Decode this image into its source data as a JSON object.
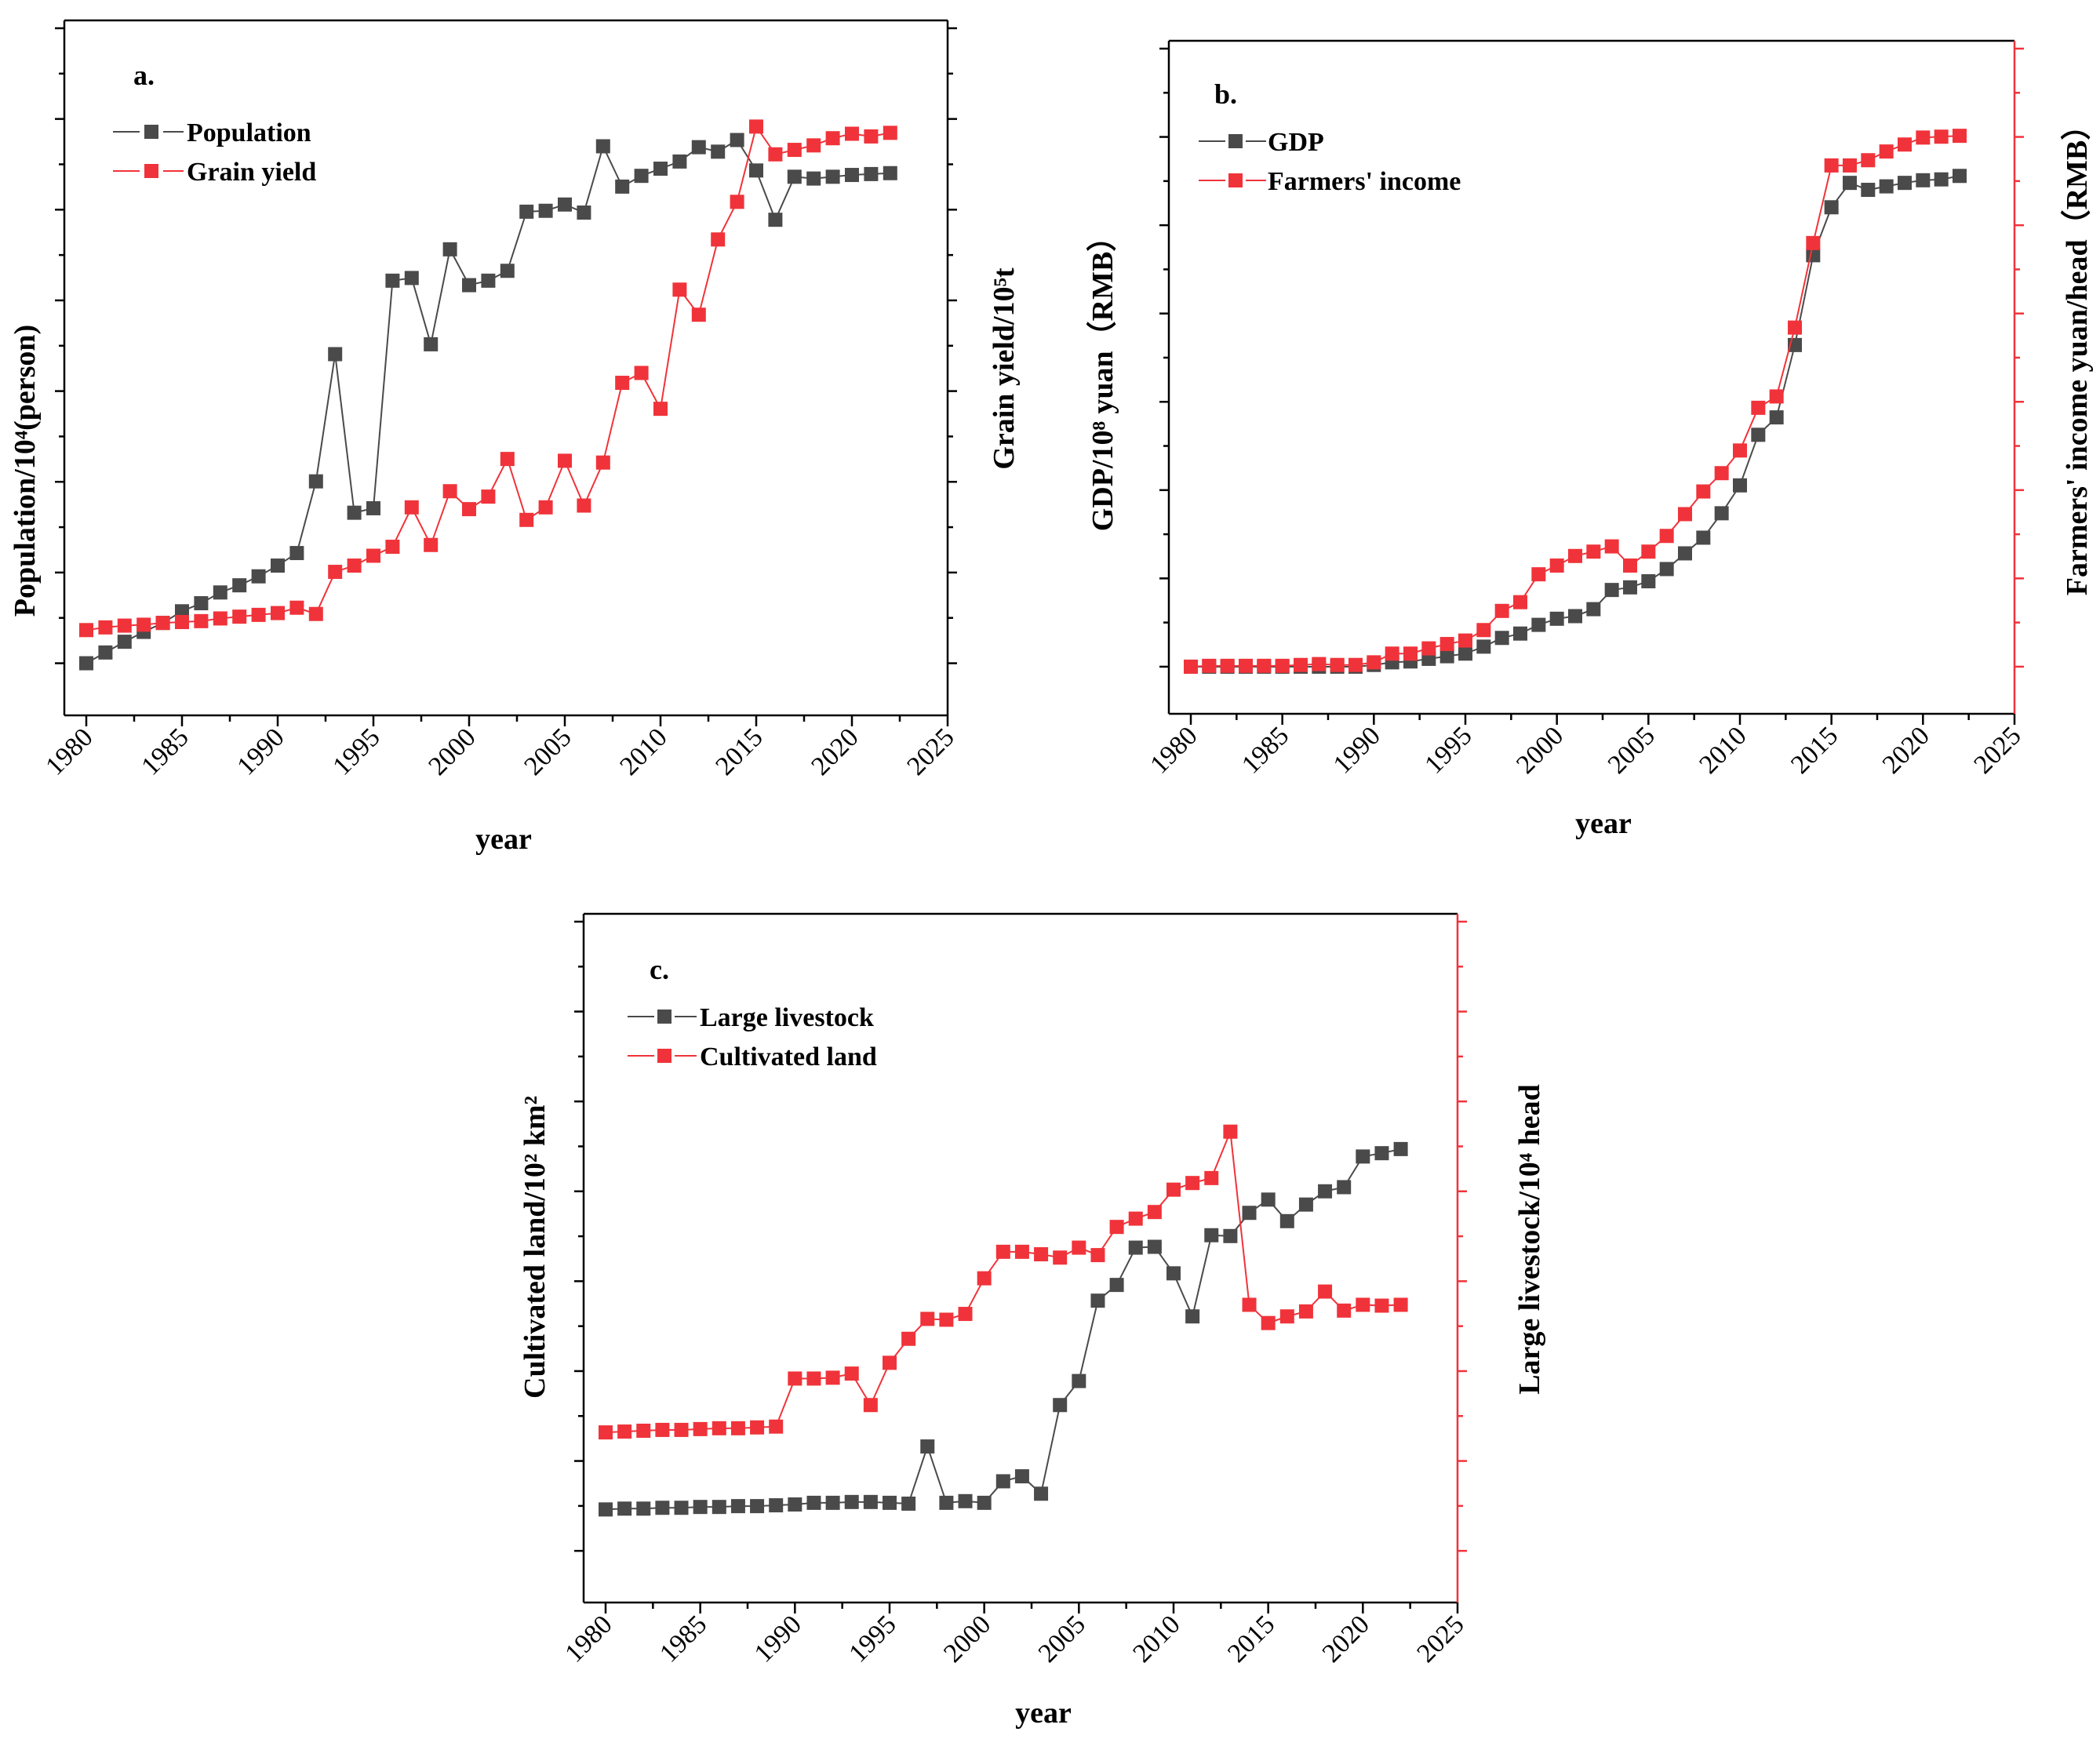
{
  "colors": {
    "series1": "#4a4a4a",
    "series2": "#f0333a",
    "axis": "#000000"
  },
  "chart_data": [
    {
      "type": "line",
      "panel": "a.",
      "xlabel": "year",
      "ylabel_left": "Population/10⁴(person)",
      "ylabel_right": "Grain yield/10⁵t",
      "x_ticks": [
        "1980",
        "1985",
        "1990",
        "1995",
        "2000",
        "2005",
        "2010",
        "2015",
        "2020",
        "2025"
      ],
      "x": [
        1980,
        1981,
        1982,
        1983,
        1984,
        1985,
        1986,
        1987,
        1988,
        1989,
        1990,
        1991,
        1992,
        1993,
        1994,
        1995,
        1996,
        1997,
        1998,
        1999,
        2000,
        2001,
        2002,
        2003,
        2004,
        2005,
        2006,
        2007,
        2008,
        2009,
        2010,
        2011,
        2012,
        2013,
        2014,
        2015,
        2016,
        2017,
        2018,
        2019,
        2020,
        2021,
        2022
      ],
      "xlim": [
        1980,
        2025
      ],
      "ylim": [
        0,
        7
      ],
      "series": [
        {
          "name": "Population",
          "color": "#4a4a4a",
          "values": [
            0.0,
            0.12,
            0.24,
            0.35,
            0.45,
            0.58,
            0.67,
            0.79,
            0.87,
            0.97,
            1.09,
            1.23,
            2.03,
            3.45,
            1.68,
            1.73,
            4.27,
            4.3,
            3.56,
            4.62,
            4.22,
            4.27,
            4.38,
            5.04,
            5.05,
            5.12,
            5.03,
            5.77,
            5.32,
            5.44,
            5.52,
            5.6,
            5.76,
            5.71,
            5.84,
            5.5,
            4.95,
            5.43,
            5.41,
            5.43,
            5.45,
            5.46,
            5.47
          ]
        },
        {
          "name": "Grain yield",
          "color": "#f0333a",
          "values": [
            0.37,
            0.4,
            0.42,
            0.43,
            0.45,
            0.46,
            0.47,
            0.5,
            0.52,
            0.54,
            0.56,
            0.62,
            0.55,
            1.02,
            1.09,
            1.2,
            1.3,
            1.74,
            1.32,
            1.92,
            1.72,
            1.86,
            2.28,
            1.6,
            1.74,
            2.26,
            1.76,
            2.24,
            3.13,
            3.24,
            2.84,
            4.17,
            3.89,
            4.73,
            5.15,
            5.99,
            5.68,
            5.73,
            5.78,
            5.86,
            5.91,
            5.88,
            5.92
          ]
        }
      ]
    },
    {
      "type": "line",
      "panel": "b.",
      "xlabel": "year",
      "ylabel_left": "GDP/10⁸ yuan（RMB）",
      "ylabel_right": "Farmers' income yuan/head（RMB）",
      "x_ticks": [
        "1980",
        "1985",
        "1990",
        "1995",
        "2000",
        "2005",
        "2010",
        "2015",
        "2020",
        "2025"
      ],
      "x": [
        1980,
        1981,
        1982,
        1983,
        1984,
        1985,
        1986,
        1987,
        1988,
        1989,
        1990,
        1991,
        1992,
        1993,
        1994,
        1995,
        1996,
        1997,
        1998,
        1999,
        2000,
        2001,
        2002,
        2003,
        2004,
        2005,
        2006,
        2007,
        2008,
        2009,
        2010,
        2011,
        2012,
        2013,
        2014,
        2015,
        2016,
        2017,
        2018,
        2019,
        2020,
        2021,
        2022
      ],
      "xlim": [
        1980,
        2025
      ],
      "ylim": [
        0,
        7
      ],
      "series": [
        {
          "name": "GDP",
          "color": "#4a4a4a",
          "values": [
            0.0,
            0.0,
            0.0,
            0.0,
            0.0,
            0.0,
            0.0,
            0.0,
            0.0,
            0.0,
            0.02,
            0.05,
            0.06,
            0.09,
            0.12,
            0.15,
            0.23,
            0.33,
            0.38,
            0.48,
            0.55,
            0.58,
            0.66,
            0.88,
            0.91,
            0.98,
            1.12,
            1.3,
            1.48,
            1.76,
            2.08,
            2.66,
            2.86,
            3.69,
            4.72,
            5.27,
            5.55,
            5.47,
            5.51,
            5.55,
            5.58,
            5.59,
            5.63
          ]
        },
        {
          "name": "Farmers' income",
          "color": "#f0333a",
          "values": [
            0.0,
            0.01,
            0.01,
            0.01,
            0.01,
            0.01,
            0.02,
            0.03,
            0.02,
            0.02,
            0.05,
            0.15,
            0.15,
            0.21,
            0.26,
            0.3,
            0.42,
            0.64,
            0.74,
            1.06,
            1.16,
            1.27,
            1.32,
            1.38,
            1.16,
            1.32,
            1.5,
            1.75,
            2.01,
            2.22,
            2.48,
            2.97,
            3.1,
            3.89,
            4.86,
            5.75,
            5.75,
            5.81,
            5.91,
            5.99,
            6.07,
            6.08,
            6.09
          ]
        }
      ]
    },
    {
      "type": "line",
      "panel": "c.",
      "xlabel": "year",
      "ylabel_left": "Cultivated land/10² km²",
      "ylabel_right": "Large livestock/10⁴ head",
      "x_ticks": [
        "1980",
        "1985",
        "1990",
        "1995",
        "2000",
        "2005",
        "2010",
        "2015",
        "2020",
        "2025"
      ],
      "x": [
        1980,
        1981,
        1982,
        1983,
        1984,
        1985,
        1986,
        1987,
        1988,
        1989,
        1990,
        1991,
        1992,
        1993,
        1994,
        1995,
        1996,
        1997,
        1998,
        1999,
        2000,
        2001,
        2002,
        2003,
        2004,
        2005,
        2006,
        2007,
        2008,
        2009,
        2010,
        2011,
        2012,
        2013,
        2014,
        2015,
        2016,
        2017,
        2018,
        2019,
        2020,
        2021,
        2022
      ],
      "xlim": [
        1980,
        2025
      ],
      "ylim": [
        0,
        7.5
      ],
      "series": [
        {
          "name": "Large livestock",
          "color": "#4a4a4a",
          "values": [
            0.5,
            0.51,
            0.51,
            0.52,
            0.52,
            0.53,
            0.53,
            0.54,
            0.54,
            0.55,
            0.56,
            0.58,
            0.58,
            0.59,
            0.59,
            0.58,
            0.57,
            1.26,
            0.58,
            0.6,
            0.58,
            0.84,
            0.9,
            0.69,
            1.76,
            2.05,
            3.02,
            3.21,
            3.66,
            3.67,
            3.35,
            2.83,
            3.81,
            3.8,
            4.08,
            4.24,
            3.98,
            4.18,
            4.34,
            4.39,
            4.76,
            4.8,
            4.85
          ]
        },
        {
          "name": "Cultivated land",
          "color": "#f0333a",
          "values": [
            1.43,
            1.44,
            1.45,
            1.46,
            1.46,
            1.47,
            1.48,
            1.48,
            1.49,
            1.5,
            2.08,
            2.08,
            2.09,
            2.14,
            1.76,
            2.27,
            2.56,
            2.8,
            2.79,
            2.86,
            3.29,
            3.61,
            3.61,
            3.58,
            3.54,
            3.66,
            3.57,
            3.91,
            4.01,
            4.09,
            4.36,
            4.44,
            4.5,
            5.06,
            2.97,
            2.75,
            2.83,
            2.89,
            3.13,
            2.9,
            2.97,
            2.96,
            2.97
          ]
        }
      ]
    }
  ]
}
